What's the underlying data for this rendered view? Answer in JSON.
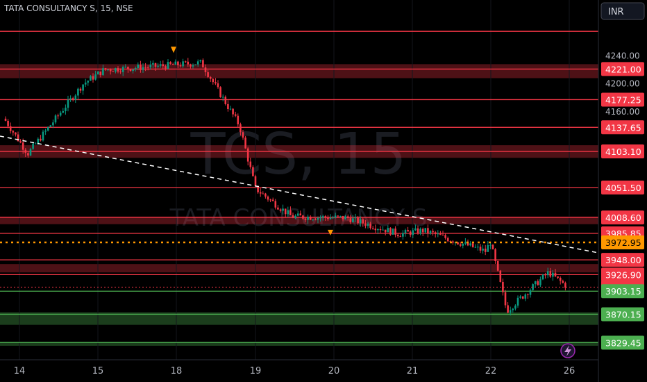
{
  "header": {
    "symbol_title": "TATA CONSULTANCY S, 15, NSE",
    "currency": "INR",
    "watermark_symbol": "TCS, 15",
    "watermark_name": "TATA CONSULTANCY S"
  },
  "colors": {
    "background": "#000000",
    "resistance": "#f23645",
    "support": "#4caf50",
    "current_price": "#ff9800",
    "candle_up": "#089981",
    "candle_down": "#f23645",
    "trendline": "#ffffff"
  },
  "chart_data": {
    "type": "candlestick",
    "title": "TATA CONSULTANCY S, 15, NSE",
    "ylim": [
      3805,
      4290
    ],
    "y_ticks": [
      4240.0,
      4200.0,
      4160.0
    ],
    "x_ticks": [
      "14",
      "15",
      "18",
      "19",
      "20",
      "21",
      "22",
      "26"
    ],
    "current_price": 3972.95,
    "last_price": 3909.0,
    "resistance_levels": [
      4221.0,
      4177.25,
      4137.65,
      4103.1,
      4051.5,
      4008.6,
      3985.85,
      3948.0,
      3926.9
    ],
    "support_levels": [
      3903.15,
      3870.15,
      3829.45
    ],
    "resistance_zones": [
      [
        4208,
        4228
      ],
      [
        4094,
        4112
      ],
      [
        3999,
        4010
      ],
      [
        3930,
        3942
      ]
    ],
    "support_zones": [
      [
        3855,
        3873
      ],
      [
        3825,
        3831
      ]
    ],
    "trendline": {
      "from": {
        "day": "14",
        "price": 4125
      },
      "to": {
        "day": "26",
        "price": 3958
      }
    },
    "price_path": [
      [
        "14",
        4150
      ],
      [
        "14",
        4100
      ],
      [
        "15",
        4200
      ],
      [
        "15",
        4220
      ],
      [
        "18",
        4225
      ],
      [
        "18",
        4230
      ],
      [
        "19",
        4140
      ],
      [
        "19",
        4050
      ],
      [
        "19",
        4010
      ],
      [
        "20",
        4008
      ],
      [
        "20",
        3985
      ],
      [
        "21",
        3990
      ],
      [
        "21",
        3960
      ],
      [
        "22",
        3975
      ],
      [
        "22",
        3875
      ],
      [
        "22",
        3930
      ],
      [
        "26",
        3909
      ]
    ]
  }
}
